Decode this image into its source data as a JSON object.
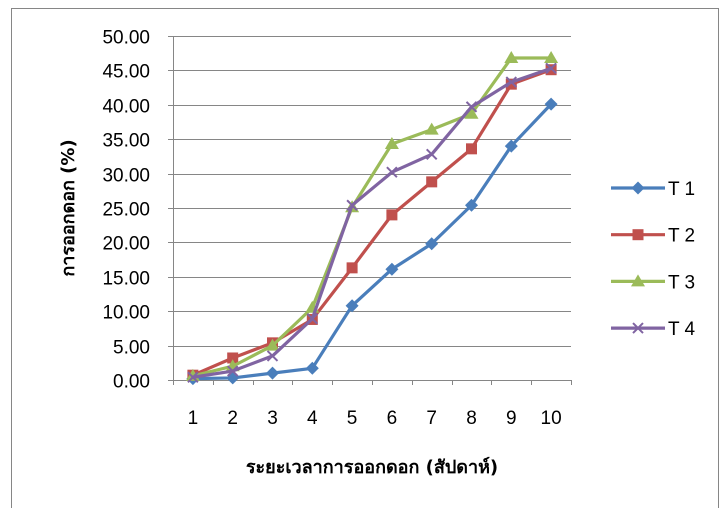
{
  "chart_data": {
    "type": "line",
    "title": "",
    "xlabel": "ระยะเวลาการออกดอก (สัปดาห์)",
    "ylabel": "การออกดอก (%)",
    "categories": [
      "1",
      "2",
      "3",
      "4",
      "5",
      "6",
      "7",
      "8",
      "9",
      "10"
    ],
    "ylim": [
      0,
      50
    ],
    "ytick_step": 5,
    "yticks": [
      "0.00",
      "5.00",
      "10.00",
      "15.00",
      "20.00",
      "25.00",
      "30.00",
      "35.00",
      "40.00",
      "45.00",
      "50.00"
    ],
    "grid": true,
    "legend": "right",
    "series": [
      {
        "name": "T 1",
        "color": "#4A7EBB",
        "marker": "diamond",
        "values": [
          0.2,
          0.3,
          1.0,
          1.7,
          10.8,
          16.1,
          19.8,
          25.4,
          34.0,
          40.1
        ]
      },
      {
        "name": "T 2",
        "color": "#C0504D",
        "marker": "square",
        "values": [
          0.7,
          3.2,
          5.4,
          8.8,
          16.3,
          24.0,
          28.8,
          33.6,
          43.0,
          45.1
        ]
      },
      {
        "name": "T 3",
        "color": "#9BBB59",
        "marker": "triangle",
        "values": [
          0.6,
          2.0,
          5.0,
          10.5,
          25.1,
          34.3,
          36.4,
          38.7,
          46.8,
          46.8
        ]
      },
      {
        "name": "T 4",
        "color": "#8064A2",
        "marker": "x",
        "values": [
          0.4,
          1.3,
          3.5,
          8.9,
          25.4,
          30.2,
          32.8,
          39.7,
          43.3,
          45.3
        ]
      }
    ]
  }
}
